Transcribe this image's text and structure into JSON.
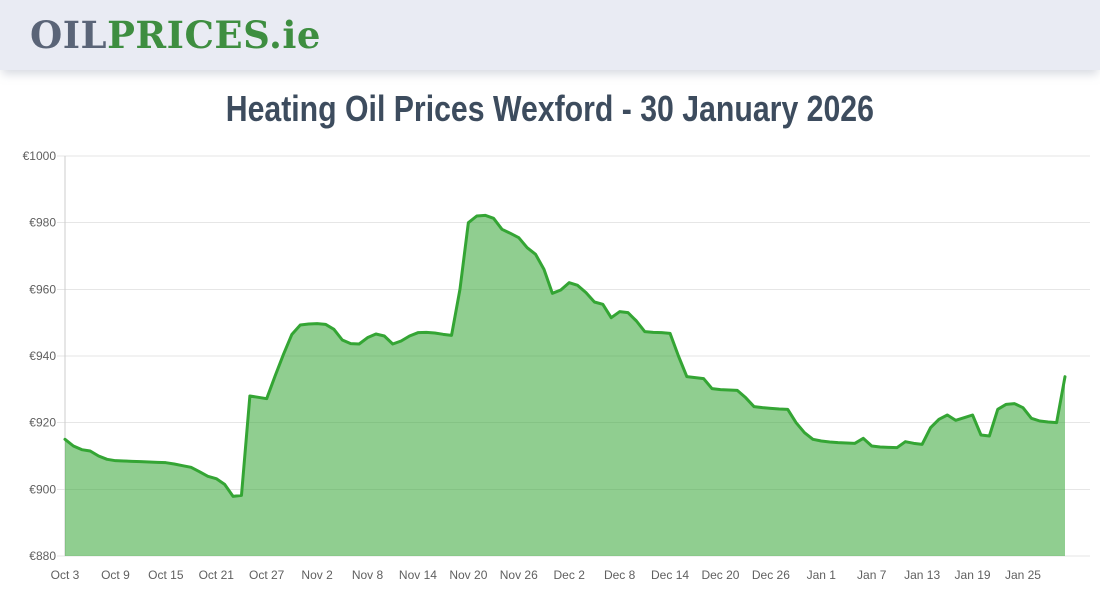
{
  "header": {
    "logo": {
      "part1": "OIL",
      "part2": "PRICES",
      "part3": ".ie"
    }
  },
  "page_title": "Heating Oil Prices Wexford - 30 January 2026",
  "colors": {
    "header_bg": "#e9ebf3",
    "logo_gray": "#5a6477",
    "logo_green": "#3e8e40",
    "title_text": "#3d4c5e",
    "line": "#34a534",
    "fill": "rgba(52,165,52,0.55)",
    "grid": "#e6e6e6",
    "axis": "#cccccc",
    "tick_text": "#606060"
  },
  "chart_data": {
    "type": "area",
    "title": "Heating Oil Prices Wexford - 30 January 2026",
    "xlabel": "",
    "ylabel": "",
    "currency_prefix": "€",
    "ylim": [
      880,
      1000
    ],
    "ytick_interval": 20,
    "ytick_labels": [
      "€880",
      "€900",
      "€920",
      "€940",
      "€960",
      "€980",
      "€1000"
    ],
    "xtick_every": 6,
    "xtick_labels": [
      "Oct 3",
      "Oct 9",
      "Oct 15",
      "Oct 21",
      "Oct 27",
      "Nov 2",
      "Nov 8",
      "Nov 14",
      "Nov 20",
      "Nov 26",
      "Dec 2",
      "Dec 8",
      "Dec 14",
      "Dec 20",
      "Dec 26",
      "Jan 1",
      "Jan 7",
      "Jan 13",
      "Jan 19",
      "Jan 25"
    ],
    "grid": "on",
    "legend": "none",
    "dates": [
      "Oct 3",
      "Oct 4",
      "Oct 5",
      "Oct 6",
      "Oct 7",
      "Oct 8",
      "Oct 9",
      "Oct 10",
      "Oct 11",
      "Oct 12",
      "Oct 13",
      "Oct 14",
      "Oct 15",
      "Oct 16",
      "Oct 17",
      "Oct 18",
      "Oct 19",
      "Oct 20",
      "Oct 21",
      "Oct 22",
      "Oct 23",
      "Oct 24",
      "Oct 25",
      "Oct 26",
      "Oct 27",
      "Oct 28",
      "Oct 29",
      "Oct 30",
      "Oct 31",
      "Nov 1",
      "Nov 2",
      "Nov 3",
      "Nov 4",
      "Nov 5",
      "Nov 6",
      "Nov 7",
      "Nov 8",
      "Nov 9",
      "Nov 10",
      "Nov 11",
      "Nov 12",
      "Nov 13",
      "Nov 14",
      "Nov 15",
      "Nov 16",
      "Nov 17",
      "Nov 18",
      "Nov 19",
      "Nov 20",
      "Nov 21",
      "Nov 22",
      "Nov 23",
      "Nov 24",
      "Nov 25",
      "Nov 26",
      "Nov 27",
      "Nov 28",
      "Nov 29",
      "Nov 30",
      "Dec 1",
      "Dec 2",
      "Dec 3",
      "Dec 4",
      "Dec 5",
      "Dec 6",
      "Dec 7",
      "Dec 8",
      "Dec 9",
      "Dec 10",
      "Dec 11",
      "Dec 12",
      "Dec 13",
      "Dec 14",
      "Dec 15",
      "Dec 16",
      "Dec 17",
      "Dec 18",
      "Dec 19",
      "Dec 20",
      "Dec 21",
      "Dec 22",
      "Dec 23",
      "Dec 24",
      "Dec 25",
      "Dec 26",
      "Dec 27",
      "Dec 28",
      "Dec 29",
      "Dec 30",
      "Dec 31",
      "Jan 1",
      "Jan 2",
      "Jan 3",
      "Jan 4",
      "Jan 5",
      "Jan 6",
      "Jan 7",
      "Jan 8",
      "Jan 9",
      "Jan 10",
      "Jan 11",
      "Jan 12",
      "Jan 13",
      "Jan 14",
      "Jan 15",
      "Jan 16",
      "Jan 17",
      "Jan 18",
      "Jan 19",
      "Jan 20",
      "Jan 21",
      "Jan 22",
      "Jan 23",
      "Jan 24",
      "Jan 25",
      "Jan 26",
      "Jan 27",
      "Jan 28",
      "Jan 29",
      "Jan 30"
    ],
    "values": [
      915.0,
      913.0,
      911.9,
      911.5,
      910.0,
      909.0,
      908.6,
      908.5,
      908.4,
      908.3,
      908.2,
      908.1,
      908.0,
      907.6,
      907.1,
      906.6,
      905.3,
      903.9,
      903.2,
      901.5,
      897.9,
      898.2,
      928.0,
      927.6,
      927.2,
      934.0,
      940.5,
      946.5,
      949.3,
      949.6,
      949.7,
      949.5,
      948.0,
      944.8,
      943.7,
      943.6,
      945.5,
      946.6,
      946.0,
      943.6,
      944.5,
      946.0,
      947.0,
      947.1,
      946.9,
      946.5,
      946.2,
      960.0,
      980.0,
      982.0,
      982.2,
      981.3,
      978.0,
      976.8,
      975.5,
      972.5,
      970.5,
      966.0,
      958.8,
      959.8,
      962.0,
      961.2,
      959.0,
      956.2,
      955.5,
      951.5,
      953.3,
      953.0,
      950.5,
      947.3,
      947.1,
      947.0,
      946.8,
      940.0,
      933.8,
      933.5,
      933.2,
      930.2,
      929.9,
      929.8,
      929.7,
      927.5,
      924.8,
      924.5,
      924.3,
      924.1,
      924.0,
      920.0,
      917.0,
      915.0,
      914.5,
      914.2,
      914.0,
      913.9,
      913.8,
      915.3,
      913.0,
      912.7,
      912.6,
      912.5,
      914.3,
      913.8,
      913.5,
      918.5,
      921.0,
      922.3,
      920.7,
      921.5,
      922.3,
      916.3,
      916.0,
      924.0,
      925.5,
      925.7,
      924.5,
      921.3,
      920.5,
      920.2,
      920.0,
      933.8
    ]
  }
}
